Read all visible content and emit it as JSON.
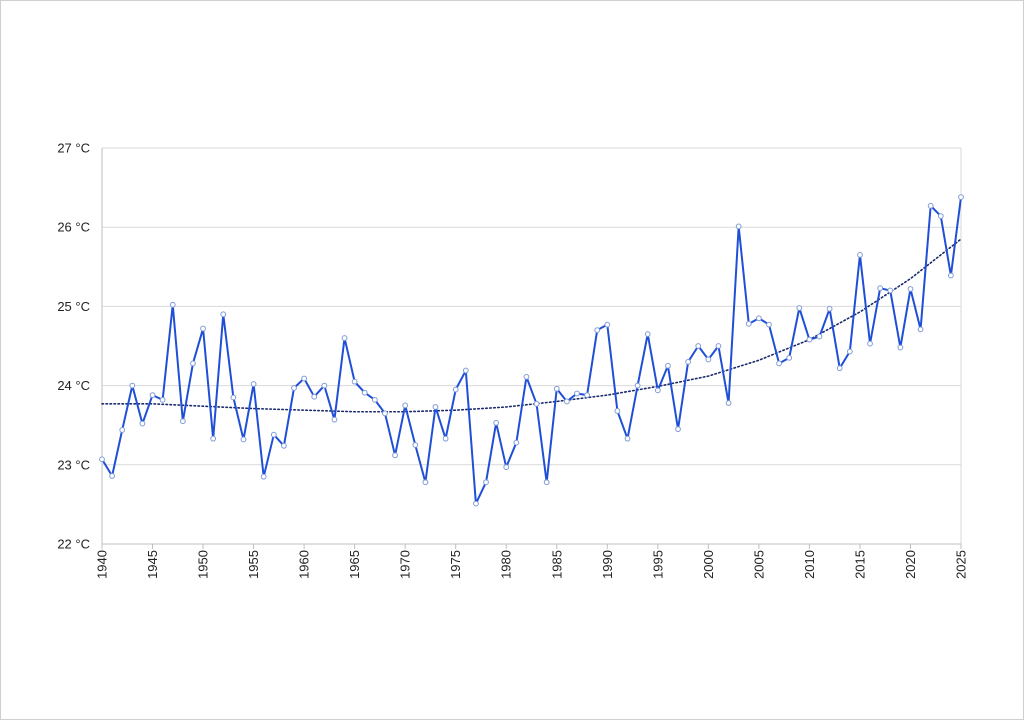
{
  "chart_data": {
    "type": "line",
    "title": "",
    "xlabel": "",
    "ylabel": "",
    "xlim": [
      1940,
      2025
    ],
    "ylim": [
      22,
      27
    ],
    "y_unit": "°C",
    "x_ticks": [
      1940,
      1945,
      1950,
      1955,
      1960,
      1965,
      1970,
      1975,
      1980,
      1985,
      1990,
      1995,
      2000,
      2005,
      2010,
      2015,
      2020,
      2025
    ],
    "y_ticks": [
      22,
      23,
      24,
      25,
      26,
      27
    ],
    "y_tick_labels": [
      "22 °C",
      "23 °C",
      "24 °C",
      "25 °C",
      "26 °C",
      "27 °C"
    ],
    "grid": "horizontal",
    "legend": "none",
    "colors": {
      "series": "#1f4fd6",
      "trend": "#1a2a6c",
      "grid": "#d9d9d9",
      "axis": "#bfbfbf"
    },
    "series": [
      {
        "x": [
          1940,
          1941,
          1942,
          1943,
          1944,
          1945,
          1946,
          1947,
          1948,
          1949,
          1950,
          1951,
          1952,
          1953,
          1954,
          1955,
          1956,
          1957,
          1958,
          1959,
          1960,
          1961,
          1962,
          1963,
          1964,
          1965,
          1966,
          1967,
          1968,
          1969,
          1970,
          1971,
          1972,
          1973,
          1974,
          1975,
          1976,
          1977,
          1978,
          1979,
          1980,
          1981,
          1982,
          1983,
          1984,
          1985,
          1986,
          1987,
          1988,
          1989,
          1990,
          1991,
          1992,
          1993,
          1994,
          1995,
          1996,
          1997,
          1998,
          1999,
          2000,
          2001,
          2002,
          2003,
          2004,
          2005,
          2006,
          2007,
          2008,
          2009,
          2010,
          2011,
          2012,
          2013,
          2014,
          2015,
          2016,
          2017,
          2018,
          2019,
          2020,
          2021,
          2022,
          2023,
          2024,
          2025
        ],
        "values": [
          23.07,
          22.86,
          23.44,
          24.0,
          23.52,
          23.88,
          23.82,
          25.02,
          23.55,
          24.28,
          24.72,
          23.33,
          24.9,
          23.85,
          23.32,
          24.02,
          22.85,
          23.38,
          23.24,
          23.97,
          24.09,
          23.86,
          24.0,
          23.57,
          24.6,
          24.05,
          23.91,
          23.82,
          23.65,
          23.12,
          23.75,
          23.25,
          22.78,
          23.73,
          23.33,
          23.95,
          24.19,
          22.51,
          22.78,
          23.53,
          22.97,
          23.28,
          24.11,
          23.77,
          22.78,
          23.96,
          23.8,
          23.9,
          23.88,
          24.7,
          24.77,
          23.68,
          23.33,
          24.0,
          24.65,
          23.94,
          24.25,
          23.45,
          24.3,
          24.5,
          24.33,
          24.5,
          23.78,
          26.01,
          24.78,
          24.85,
          24.77,
          24.28,
          24.35,
          24.98,
          24.58,
          24.62,
          24.97,
          24.22,
          24.43,
          25.65,
          24.53,
          25.23,
          25.2,
          24.48,
          25.22,
          24.71,
          26.27,
          26.14,
          25.39,
          26.38
        ]
      }
    ],
    "trendline": {
      "style": "dotted",
      "x": [
        1940,
        1945,
        1950,
        1955,
        1960,
        1965,
        1970,
        1975,
        1980,
        1985,
        1990,
        1995,
        2000,
        2005,
        2010,
        2015,
        2020,
        2025
      ],
      "values": [
        23.77,
        23.77,
        23.74,
        23.71,
        23.69,
        23.67,
        23.67,
        23.69,
        23.73,
        23.8,
        23.88,
        23.99,
        24.12,
        24.32,
        24.58,
        24.93,
        25.35,
        25.85
      ]
    }
  }
}
